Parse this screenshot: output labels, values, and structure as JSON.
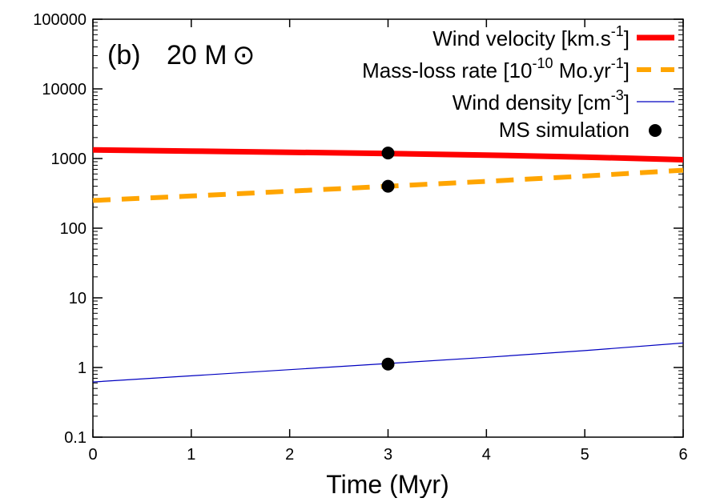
{
  "chart_data": {
    "type": "line",
    "panel_label": "(b)",
    "mass_label": "20 M",
    "mass_symbol": "⊙",
    "xlabel": "Time (Myr)",
    "xlim": [
      0,
      6
    ],
    "x_ticks": [
      "0",
      "1",
      "2",
      "3",
      "4",
      "5",
      "6"
    ],
    "ylim": [
      0.1,
      100000
    ],
    "y_scale": "log",
    "y_ticks": [
      "100000",
      "10000",
      "1000",
      "100",
      "10",
      "1",
      "0.1"
    ],
    "y_tick_values": [
      100000,
      10000,
      1000,
      100,
      10,
      1,
      0.1
    ],
    "grid": false,
    "legend_position": "top-right",
    "series": [
      {
        "name": "Wind velocity [km.s-1]",
        "legend": {
          "text": "Wind velocity [km.s",
          "sup": "-1",
          "close": "]"
        },
        "style": "solid",
        "color": "#ff0000",
        "x": [
          0,
          1,
          2,
          3,
          4,
          5,
          6
        ],
        "y": [
          1330,
          1280,
          1230,
          1180,
          1120,
          1050,
          960
        ]
      },
      {
        "name": "Mass-loss rate [10-10 Mo.yr-1]",
        "legend": {
          "text": "Mass-loss rate [10",
          "sup": "-10",
          "mid": " Mo.yr",
          "sup2": "-1",
          "close": "]"
        },
        "style": "dashed",
        "color": "#ffa500",
        "x": [
          0,
          1,
          2,
          3,
          4,
          5,
          6
        ],
        "y": [
          250,
          290,
          340,
          400,
          470,
          560,
          680
        ]
      },
      {
        "name": "Wind density [cm-3]",
        "legend": {
          "text": "Wind density [cm",
          "sup": "-3",
          "close": "]"
        },
        "style": "thin",
        "color": "#0000c0",
        "x": [
          0,
          1,
          2,
          3,
          4,
          5,
          6
        ],
        "y": [
          0.62,
          0.76,
          0.93,
          1.14,
          1.4,
          1.75,
          2.25
        ]
      },
      {
        "name": "MS simulation",
        "legend": {
          "text": "MS simulation"
        },
        "style": "points",
        "color": "#000000",
        "x": [
          3,
          3,
          3
        ],
        "y": [
          1200,
          400,
          1.12
        ]
      }
    ]
  }
}
